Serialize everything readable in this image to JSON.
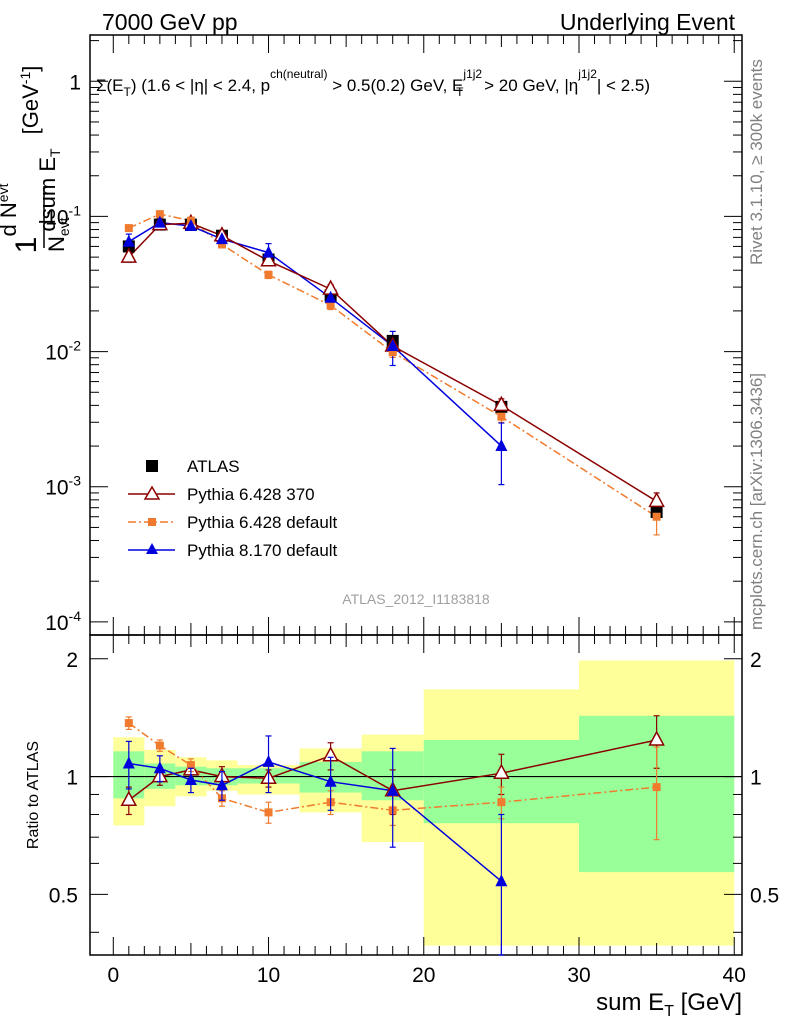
{
  "header": {
    "left": "7000 GeV pp",
    "right": "Underlying Event"
  },
  "side_labels": {
    "rivet": "Rivet 3.1.10, ≥ 300k events",
    "mcplots": "mcplots.cern.ch [arXiv:1306.3436]"
  },
  "analysis_id": "ATLAS_2012_I1183818",
  "colors": {
    "atlas": "#000000",
    "p6_370": "#8b0000",
    "p6_default": "#f07b2e",
    "p8": "#0000dd",
    "band_inner": "#99ff99",
    "band_outer": "#ffff99"
  },
  "chart_data": [
    {
      "type": "line",
      "panel": "main",
      "title": "Σ(E_T) (1.6 < |η| < 2.4, p^{ch(neutral)} > 0.5(0.2) GeV, E_T^{j1j2} > 20 GeV, |η^{j1j2}| < 2.5)",
      "ylabel": "1/N_evt dN_evt/dsum E_T [GeV^-1]",
      "yscale": "log",
      "ylim": [
        8e-05,
        2.2
      ],
      "xlim": [
        -1.5,
        40.5
      ],
      "y_ticks": [
        "10^-4",
        "10^-3",
        "10^-2",
        "10^-1",
        "1"
      ],
      "legend_position": "lower-left",
      "x": [
        1,
        3,
        5,
        7,
        10,
        14,
        18,
        25,
        35
      ],
      "series": [
        {
          "name": "ATLAS",
          "marker": "filled-square",
          "values": [
            0.06,
            0.087,
            0.087,
            0.072,
            0.048,
            0.026,
            0.012,
            0.0039,
            0.00065
          ]
        },
        {
          "name": "Pythia 6.428 370",
          "marker": "open-triangle",
          "line": "solid",
          "values": [
            0.05,
            0.087,
            0.089,
            0.072,
            0.047,
            0.029,
            0.011,
            0.004,
            0.00078
          ]
        },
        {
          "name": "Pythia 6.428 default",
          "marker": "small-square",
          "line": "dash-dot",
          "values": [
            0.082,
            0.104,
            0.093,
            0.062,
            0.037,
            0.022,
            0.0099,
            0.0033,
            0.0006
          ]
        },
        {
          "name": "Pythia 8.170 default",
          "marker": "filled-triangle",
          "line": "solid",
          "values": [
            0.065,
            0.09,
            0.085,
            0.068,
            0.054,
            0.025,
            0.011,
            0.002,
            null
          ]
        }
      ]
    },
    {
      "type": "line",
      "panel": "ratio",
      "xlabel": "sum E_T [GeV]",
      "ylabel": "Ratio to ATLAS",
      "ylim": [
        0.35,
        2.3
      ],
      "xlim": [
        -1.5,
        40.5
      ],
      "x_ticks": [
        0,
        10,
        20,
        30,
        40
      ],
      "y_ticks": [
        0.5,
        1,
        2
      ],
      "bins": [
        [
          0,
          2
        ],
        [
          2,
          4
        ],
        [
          4,
          6
        ],
        [
          6,
          8
        ],
        [
          8,
          12
        ],
        [
          12,
          16
        ],
        [
          16,
          20
        ],
        [
          20,
          30
        ],
        [
          30,
          40
        ]
      ],
      "band_inner": [
        [
          0.88,
          1.16
        ],
        [
          0.93,
          1.08
        ],
        [
          0.95,
          1.06
        ],
        [
          0.95,
          1.05
        ],
        [
          0.96,
          1.05
        ],
        [
          0.91,
          1.09
        ],
        [
          0.87,
          1.16
        ],
        [
          0.76,
          1.24
        ],
        [
          0.57,
          1.43
        ]
      ],
      "band_outer": [
        [
          0.75,
          1.26
        ],
        [
          0.84,
          1.17
        ],
        [
          0.89,
          1.12
        ],
        [
          0.92,
          1.1
        ],
        [
          0.9,
          1.07
        ],
        [
          0.81,
          1.18
        ],
        [
          0.68,
          1.28
        ],
        [
          0.37,
          1.67
        ],
        [
          0.37,
          1.98
        ]
      ],
      "x": [
        1,
        3,
        5,
        7,
        10,
        14,
        18,
        25,
        35
      ],
      "series": [
        {
          "name": "Pythia 6.428 370",
          "values": [
            0.87,
            1.0,
            1.04,
            1.0,
            0.99,
            1.13,
            0.92,
            1.02,
            1.24
          ],
          "errors": [
            0.07,
            0.05,
            0.05,
            0.06,
            0.05,
            0.09,
            0.12,
            0.12,
            0.19
          ]
        },
        {
          "name": "Pythia 6.428 default",
          "values": [
            1.37,
            1.2,
            1.07,
            0.88,
            0.81,
            0.86,
            0.82,
            0.86,
            0.94
          ],
          "errors": [
            0.05,
            0.04,
            0.04,
            0.04,
            0.05,
            0.06,
            0.07,
            0.08,
            0.25
          ]
        },
        {
          "name": "Pythia 8.170 default",
          "values": [
            1.08,
            1.05,
            0.98,
            0.95,
            1.09,
            0.97,
            0.92,
            0.54,
            null
          ],
          "errors": [
            0.15,
            0.08,
            0.07,
            0.08,
            0.18,
            0.15,
            0.26,
            0.26,
            null
          ]
        }
      ]
    }
  ]
}
